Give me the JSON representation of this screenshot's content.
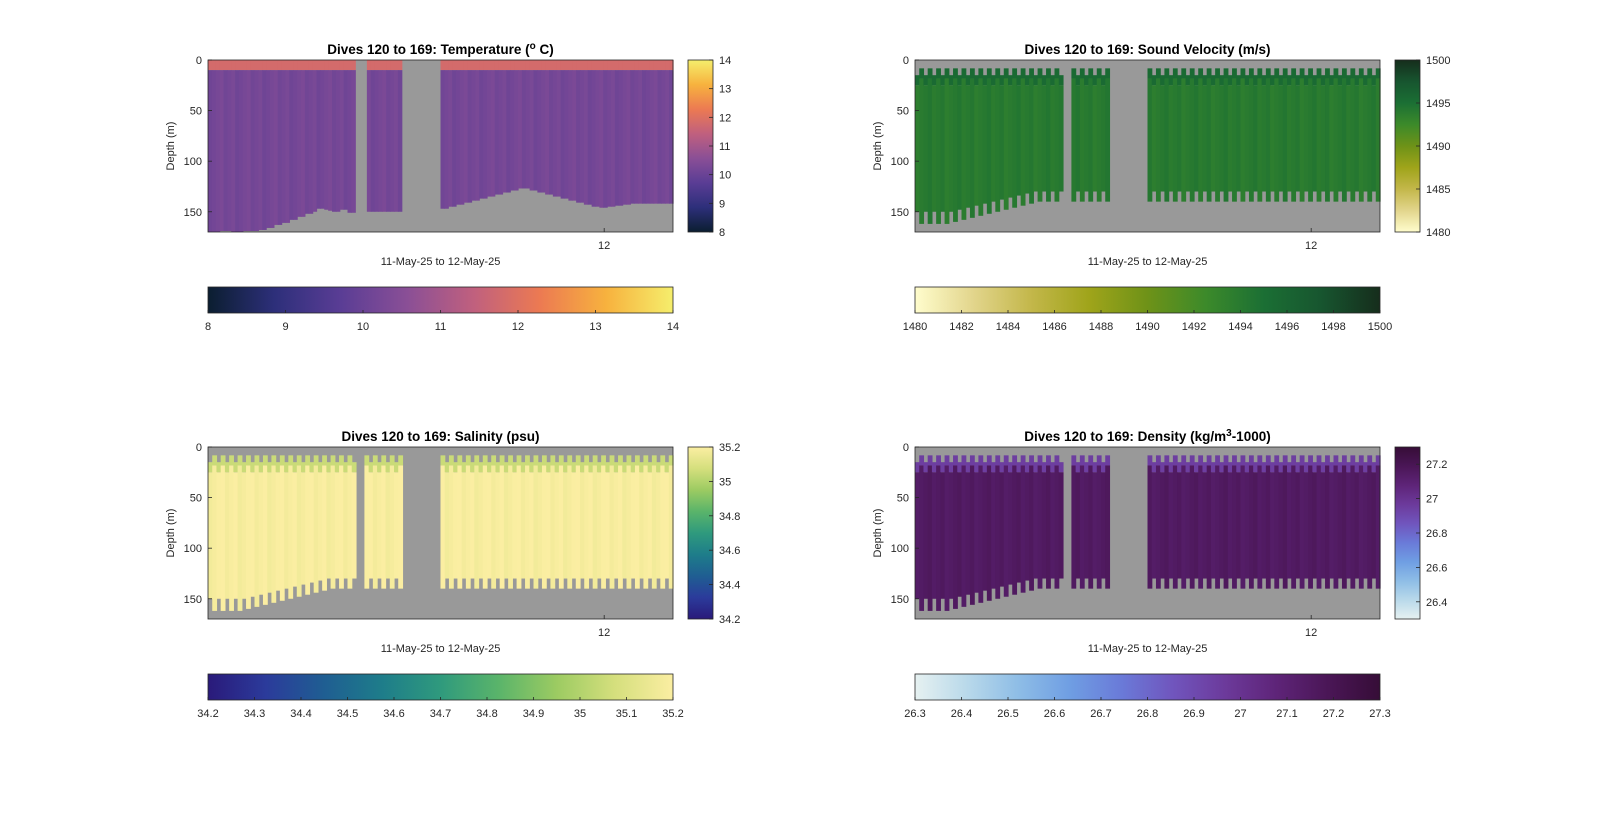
{
  "chart_data": [
    {
      "type": "heatmap",
      "title": "Dives 120 to 169: Temperature (° C)",
      "title_parts": [
        "Dives 120 to 169: Temperature (",
        "o",
        " C)"
      ],
      "xlabel": "11-May-25 to 12-May-25",
      "ylabel": "Depth (m)",
      "x_ticks": [
        "12"
      ],
      "y_ticks": [
        "0",
        "50",
        "100",
        "150"
      ],
      "ylim": [
        0,
        170
      ],
      "clim": [
        8,
        14
      ],
      "colorbar_ticks": [
        "8",
        "9",
        "10",
        "11",
        "12",
        "13",
        "14"
      ],
      "colormap": "thermal",
      "colormap_colors": [
        "#0b1e30",
        "#2d2f7a",
        "#5a3d95",
        "#8a4f96",
        "#c0607e",
        "#ec7a52",
        "#f7b23e",
        "#f5ee6c"
      ],
      "surface_value": 11.8,
      "interior_value": 10.2,
      "bottom_depth_series": [
        170,
        170,
        170,
        169,
        169,
        169,
        170,
        170,
        170,
        169,
        169,
        169,
        169,
        168,
        168,
        166,
        166,
        163,
        163,
        161,
        161,
        158,
        158,
        155,
        155,
        152,
        152,
        150,
        147,
        147,
        148,
        149,
        150,
        150,
        148,
        148,
        151,
        151,
        150,
        150,
        150,
        150,
        150,
        150,
        150,
        150,
        150,
        150,
        150,
        150,
        152,
        152,
        147,
        147,
        145,
        145,
        147,
        147,
        149,
        149,
        147,
        147,
        145,
        145,
        143,
        143,
        141,
        141,
        139,
        139,
        137,
        137,
        135,
        135,
        133,
        133,
        131,
        131,
        129,
        129,
        127,
        127,
        127,
        129,
        129,
        131,
        131,
        133,
        133,
        135,
        135,
        137,
        137,
        139,
        139,
        141,
        141,
        143,
        143,
        145,
        145,
        146,
        146,
        145,
        145,
        144,
        144,
        143,
        143,
        142,
        142,
        142,
        142,
        142,
        142,
        142,
        142,
        142,
        142,
        142
      ],
      "gaps": [
        [
          0.317,
          0.338
        ],
        [
          0.42,
          0.5
        ]
      ],
      "top_gap_depth": 0
    },
    {
      "type": "heatmap",
      "title": "Dives 120 to 169: Sound Velocity (m/s)",
      "title_parts": [
        "Dives 120 to 169: Sound Velocity (m/s)"
      ],
      "xlabel": "11-May-25 to 12-May-25",
      "ylabel": "Depth (m)",
      "x_ticks": [
        "12"
      ],
      "y_ticks": [
        "0",
        "50",
        "100",
        "150"
      ],
      "ylim": [
        0,
        170
      ],
      "clim": [
        1480,
        1500
      ],
      "colorbar_ticks": [
        "1480",
        "1482",
        "1484",
        "1486",
        "1488",
        "1490",
        "1492",
        "1494",
        "1496",
        "1498",
        "1500"
      ],
      "side_colorbar_ticks": [
        "1480",
        "1485",
        "1490",
        "1495",
        "1500"
      ],
      "colormap": "speed",
      "colormap_colors": [
        "#fffdcd",
        "#e2d58c",
        "#c3b74a",
        "#9fa41a",
        "#6e9218",
        "#3c8a2a",
        "#1b6f34",
        "#17552f",
        "#162d1c"
      ],
      "surface_value": 1495.5,
      "interior_value": 1494.0,
      "bottom_depth_series": [
        150,
        162,
        150,
        162,
        150,
        162,
        150,
        162,
        150,
        160,
        148,
        158,
        146,
        156,
        144,
        154,
        142,
        152,
        140,
        150,
        138,
        148,
        136,
        146,
        134,
        144,
        132,
        142,
        130,
        140,
        130,
        140,
        130,
        140,
        130,
        140,
        130,
        140,
        130,
        140,
        130,
        140,
        130,
        140,
        130,
        140,
        130,
        140,
        130,
        140,
        130,
        140,
        130,
        140,
        130,
        140,
        130,
        140,
        130,
        140,
        130,
        140,
        130,
        140,
        130,
        140,
        130,
        140,
        130,
        140,
        130,
        140,
        130,
        140,
        130,
        140,
        130,
        140,
        130,
        140,
        130,
        140,
        130,
        140,
        130,
        140,
        130,
        140,
        130,
        140,
        130,
        140,
        130,
        140,
        130,
        140,
        130,
        140,
        130,
        140,
        130,
        140,
        130,
        140,
        130,
        140,
        130,
        140,
        130,
        140
      ],
      "gaps": [
        [
          0.317,
          0.338
        ],
        [
          0.42,
          0.5
        ]
      ],
      "top_gap_depth": 15
    },
    {
      "type": "heatmap",
      "title": "Dives 120 to 169: Salinity (psu)",
      "title_parts": [
        "Dives 120 to 169: Salinity (psu)"
      ],
      "xlabel": "11-May-25 to 12-May-25",
      "ylabel": "Depth (m)",
      "x_ticks": [
        "12"
      ],
      "y_ticks": [
        "0",
        "50",
        "100",
        "150"
      ],
      "ylim": [
        0,
        170
      ],
      "clim": [
        34.2,
        35.2
      ],
      "colorbar_ticks": [
        "34.2",
        "34.3",
        "34.4",
        "34.5",
        "34.6",
        "34.7",
        "34.8",
        "34.9",
        "35",
        "35.1",
        "35.2"
      ],
      "side_colorbar_ticks": [
        "34.2",
        "34.4",
        "34.6",
        "34.8",
        "35",
        "35.2"
      ],
      "colormap": "haline",
      "colormap_colors": [
        "#2a1a7a",
        "#2b3b9b",
        "#1f5e92",
        "#1e7d8a",
        "#2f9a7d",
        "#5ab46a",
        "#9ccb62",
        "#d5df7d",
        "#fbeea2"
      ],
      "surface_value": 35.05,
      "interior_value": 35.19,
      "bottom_depth_series": [
        150,
        162,
        150,
        162,
        150,
        162,
        150,
        162,
        150,
        160,
        148,
        158,
        146,
        156,
        144,
        154,
        142,
        152,
        140,
        150,
        138,
        148,
        136,
        146,
        134,
        144,
        132,
        142,
        130,
        140,
        130,
        140,
        130,
        140,
        130,
        140,
        130,
        140,
        130,
        140,
        130,
        140,
        130,
        140,
        130,
        140,
        130,
        140,
        130,
        140,
        130,
        140,
        130,
        140,
        130,
        140,
        130,
        140,
        130,
        140,
        130,
        140,
        130,
        140,
        130,
        140,
        130,
        140,
        130,
        140,
        130,
        140,
        130,
        140,
        130,
        140,
        130,
        140,
        130,
        140,
        130,
        140,
        130,
        140,
        130,
        140,
        130,
        140,
        130,
        140,
        130,
        140,
        130,
        140,
        130,
        140,
        130,
        140,
        130,
        140,
        130,
        140,
        130,
        140,
        130,
        140,
        130,
        140,
        130,
        140
      ],
      "gaps": [
        [
          0.317,
          0.338
        ],
        [
          0.42,
          0.5
        ]
      ],
      "top_gap_depth": 15
    },
    {
      "type": "heatmap",
      "title": "Dives 120 to 169: Density (kg/m³-1000)",
      "title_parts": [
        "Dives 120 to 169: Density (kg/m",
        "3",
        "-1000)"
      ],
      "xlabel": "11-May-25 to 12-May-25",
      "ylabel": "Depth (m)",
      "x_ticks": [
        "12"
      ],
      "y_ticks": [
        "0",
        "50",
        "100",
        "150"
      ],
      "ylim": [
        0,
        170
      ],
      "clim": [
        26.3,
        27.3
      ],
      "colorbar_ticks": [
        "26.3",
        "26.4",
        "26.5",
        "26.6",
        "26.7",
        "26.8",
        "26.9",
        "27",
        "27.1",
        "27.2",
        "27.3"
      ],
      "side_colorbar_ticks": [
        "26.4",
        "26.6",
        "26.8",
        "27",
        "27.2"
      ],
      "colormap": "dense",
      "colormap_colors": [
        "#e6f1f1",
        "#b9d9ea",
        "#8ebde6",
        "#6f9ee3",
        "#6a7ad8",
        "#7055bd",
        "#6c3a9b",
        "#5e2478",
        "#4a1656",
        "#360d37"
      ],
      "surface_value": 26.95,
      "interior_value": 27.15,
      "bottom_depth_series": [
        150,
        162,
        150,
        162,
        150,
        162,
        150,
        162,
        150,
        160,
        148,
        158,
        146,
        156,
        144,
        154,
        142,
        152,
        140,
        150,
        138,
        148,
        136,
        146,
        134,
        144,
        132,
        142,
        130,
        140,
        130,
        140,
        130,
        140,
        130,
        140,
        130,
        140,
        130,
        140,
        130,
        140,
        130,
        140,
        130,
        140,
        130,
        140,
        130,
        140,
        130,
        140,
        130,
        140,
        130,
        140,
        130,
        140,
        130,
        140,
        130,
        140,
        130,
        140,
        130,
        140,
        130,
        140,
        130,
        140,
        130,
        140,
        130,
        140,
        130,
        140,
        130,
        140,
        130,
        140,
        130,
        140,
        130,
        140,
        130,
        140,
        130,
        140,
        130,
        140,
        130,
        140,
        130,
        140,
        130,
        140,
        130,
        140,
        130,
        140,
        130,
        140,
        130,
        140,
        130,
        140,
        130,
        140,
        130,
        140
      ],
      "gaps": [
        [
          0.317,
          0.338
        ],
        [
          0.42,
          0.5
        ]
      ],
      "top_gap_depth": 15
    }
  ]
}
